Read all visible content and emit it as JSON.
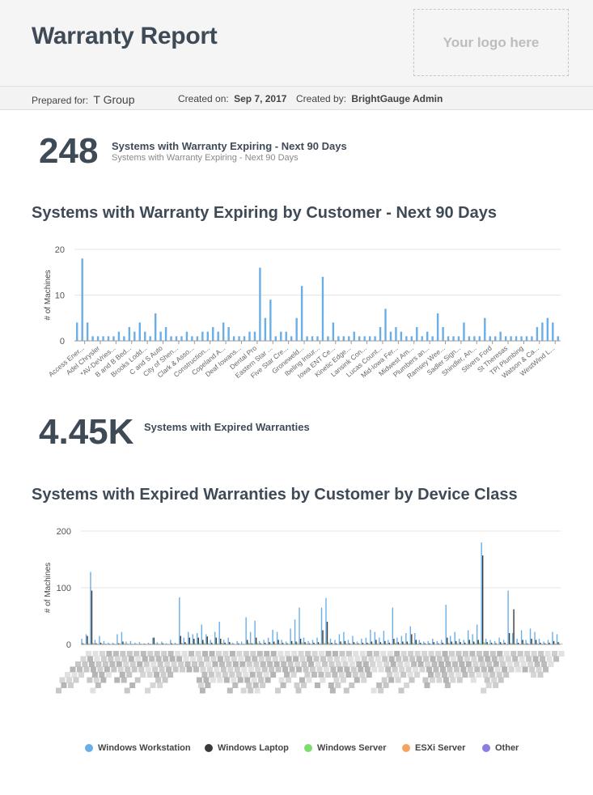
{
  "header": {
    "title": "Warranty Report",
    "logo_placeholder": "Your logo here"
  },
  "meta": {
    "prepared_for_label": "Prepared for:",
    "prepared_for_value": "T Group",
    "created_on_label": "Created on:",
    "created_on_value": "Sep 7, 2017",
    "created_by_label": "Created by:",
    "created_by_value": "BrightGauge Admin"
  },
  "kpi1": {
    "value": "248",
    "label": "Systems with Warranty Expiring - Next 90 Days",
    "sublabel": "Systems with Warranty Expiring - Next 90 Days"
  },
  "kpi2": {
    "value": "4.45K",
    "label": "Systems with Expired Warranties"
  },
  "chart1_title": "Systems with Warranty Expiring by Customer - Next 90 Days",
  "chart2_title": "Systems with Expired Warranties by Customer by Device Class",
  "colors": {
    "blue": "#6aaee8",
    "dark": "#3a3a3a",
    "green": "#7dde6e",
    "orange": "#f4a460",
    "purple": "#8a7ee0",
    "grid": "#e6e6e6",
    "axis": "#555555"
  },
  "chart_data": [
    {
      "type": "bar",
      "title": "Systems with Warranty Expiring by Customer - Next 90 Days",
      "ylabel": "# of Machines",
      "ylim": [
        0,
        20
      ],
      "yticks": [
        0,
        10,
        20
      ],
      "tick_labels": [
        "Access Ener...",
        "Adel Chrysler",
        "*AV-DeVries...",
        "B and B Bed...",
        "Brooks Lodd...",
        "C and S Auto",
        "City of Shen...",
        "Clark & Asso...",
        "Construction...",
        "Copeland A...",
        "Deaf Iowans...",
        "Dental Pro",
        "Eastern Star ...",
        "Five Star Cre...",
        "Groneweld...",
        "Ibeling Insur...",
        "Iowa ENT Ce...",
        "Kinetic Edge...",
        "Lansink Con...",
        "Lucas Count...",
        "Mid-Iowa Fer...",
        "Midwest Am...",
        "Plumbers an...",
        "Ramsey Wee...",
        "Sadler Sign...",
        "Shindler, An...",
        "Stivers Ford",
        "St Theresas",
        "TPI Plumbing",
        "Watson & Ca...",
        "WestWind L..."
      ],
      "values": [
        4,
        18,
        4,
        1,
        1,
        1,
        1,
        1,
        2,
        1,
        3,
        2,
        4,
        2,
        1,
        6,
        2,
        3,
        1,
        1,
        1,
        2,
        1,
        1,
        2,
        2,
        3,
        2,
        4,
        3,
        1,
        1,
        1,
        2,
        2,
        16,
        5,
        9,
        1,
        2,
        2,
        1,
        5,
        12,
        1,
        1,
        1,
        14,
        1,
        4,
        1,
        1,
        1,
        2,
        1,
        1,
        1,
        1,
        3,
        7,
        2,
        3,
        2,
        1,
        1,
        3,
        1,
        2,
        1,
        6,
        3,
        1,
        1,
        1,
        4,
        1,
        1,
        1,
        5,
        1,
        1,
        2,
        1,
        1,
        1,
        1,
        1,
        1,
        3,
        4,
        5,
        4,
        1
      ]
    },
    {
      "type": "bar",
      "title": "Systems with Expired Warranties by Customer by Device Class",
      "ylabel": "# of Machines",
      "ylim": [
        0,
        200
      ],
      "yticks": [
        0,
        100,
        200
      ],
      "series": [
        {
          "name": "Windows Workstation",
          "values": [
            10,
            18,
            128,
            8,
            15,
            6,
            3,
            3,
            18,
            22,
            5,
            6,
            3,
            4,
            2,
            3,
            12,
            4,
            5,
            2,
            8,
            3,
            83,
            12,
            22,
            18,
            20,
            35,
            18,
            8,
            22,
            40,
            8,
            12,
            3,
            6,
            5,
            48,
            22,
            42,
            6,
            8,
            12,
            26,
            22,
            8,
            5,
            28,
            44,
            65,
            12,
            6,
            8,
            12,
            65,
            82,
            10,
            8,
            18,
            22,
            8,
            15,
            5,
            10,
            12,
            26,
            22,
            12,
            24,
            8,
            65,
            12,
            15,
            20,
            32,
            20,
            8,
            5,
            6,
            10,
            6,
            8,
            70,
            15,
            22,
            10,
            8,
            25,
            18,
            35,
            180,
            10,
            8,
            6,
            12,
            8,
            95,
            20,
            10,
            25,
            8,
            28,
            22,
            10,
            5,
            8,
            22,
            18
          ]
        },
        {
          "name": "Windows Laptop",
          "values": [
            2,
            15,
            95,
            2,
            3,
            1,
            1,
            1,
            2,
            5,
            1,
            1,
            1,
            1,
            1,
            1,
            12,
            1,
            2,
            1,
            2,
            1,
            15,
            4,
            12,
            10,
            12,
            8,
            14,
            3,
            12,
            10,
            3,
            4,
            1,
            2,
            1,
            8,
            2,
            12,
            2,
            3,
            4,
            5,
            8,
            3,
            2,
            6,
            5,
            10,
            4,
            2,
            3,
            4,
            25,
            40,
            3,
            2,
            5,
            6,
            2,
            4,
            2,
            3,
            3,
            5,
            8,
            4,
            6,
            3,
            10,
            4,
            5,
            5,
            18,
            8,
            3,
            2,
            2,
            4,
            2,
            3,
            12,
            5,
            6,
            4,
            3,
            8,
            5,
            8,
            157,
            4,
            3,
            2,
            4,
            3,
            20,
            62,
            3,
            8,
            2,
            10,
            8,
            3,
            2,
            3,
            6,
            4
          ]
        },
        {
          "name": "Windows Server",
          "values": [
            1,
            2,
            3,
            1,
            2,
            1,
            0,
            0,
            2,
            2,
            1,
            1,
            0,
            1,
            0,
            1,
            2,
            1,
            1,
            0,
            1,
            1,
            3,
            2,
            2,
            2,
            2,
            3,
            2,
            1,
            2,
            3,
            1,
            2,
            0,
            1,
            1,
            3,
            2,
            3,
            1,
            1,
            2,
            2,
            2,
            1,
            1,
            2,
            3,
            4,
            2,
            1,
            1,
            2,
            3,
            4,
            1,
            1,
            2,
            2,
            1,
            2,
            1,
            1,
            2,
            2,
            2,
            2,
            2,
            1,
            3,
            2,
            2,
            2,
            3,
            2,
            1,
            1,
            1,
            1,
            1,
            1,
            3,
            2,
            2,
            1,
            1,
            2,
            2,
            3,
            4,
            1,
            1,
            1,
            2,
            1,
            3,
            2,
            1,
            2,
            1,
            2,
            2,
            1,
            1,
            1,
            2,
            2
          ]
        },
        {
          "name": "ESXi Server",
          "values": [
            0,
            1,
            2,
            0,
            1,
            0,
            0,
            0,
            1,
            1,
            0,
            0,
            0,
            0,
            0,
            0,
            1,
            0,
            0,
            0,
            0,
            0,
            2,
            1,
            1,
            1,
            1,
            1,
            1,
            0,
            1,
            2,
            0,
            1,
            0,
            0,
            0,
            2,
            1,
            1,
            0,
            0,
            1,
            1,
            1,
            0,
            0,
            1,
            1,
            2,
            1,
            0,
            0,
            1,
            2,
            2,
            0,
            0,
            1,
            1,
            0,
            1,
            0,
            0,
            1,
            1,
            1,
            1,
            1,
            0,
            2,
            1,
            1,
            1,
            1,
            1,
            0,
            0,
            0,
            0,
            0,
            0,
            2,
            1,
            1,
            0,
            0,
            1,
            1,
            1,
            3,
            0,
            0,
            0,
            1,
            0,
            2,
            1,
            0,
            1,
            0,
            1,
            1,
            0,
            0,
            0,
            1,
            1
          ]
        },
        {
          "name": "Other",
          "values": [
            0,
            1,
            1,
            0,
            0,
            0,
            0,
            0,
            0,
            1,
            0,
            0,
            0,
            0,
            0,
            0,
            1,
            0,
            0,
            0,
            0,
            0,
            1,
            0,
            1,
            0,
            1,
            0,
            1,
            0,
            0,
            1,
            0,
            0,
            0,
            0,
            0,
            1,
            0,
            1,
            0,
            0,
            0,
            1,
            0,
            0,
            0,
            0,
            1,
            1,
            0,
            0,
            0,
            0,
            1,
            1,
            0,
            0,
            0,
            1,
            0,
            0,
            0,
            0,
            0,
            1,
            0,
            0,
            1,
            0,
            1,
            0,
            0,
            1,
            1,
            0,
            0,
            0,
            0,
            0,
            0,
            0,
            1,
            0,
            1,
            0,
            0,
            0,
            0,
            1,
            2,
            0,
            0,
            0,
            0,
            0,
            1,
            1,
            0,
            1,
            0,
            1,
            0,
            0,
            0,
            0,
            0,
            1
          ]
        }
      ]
    }
  ]
}
